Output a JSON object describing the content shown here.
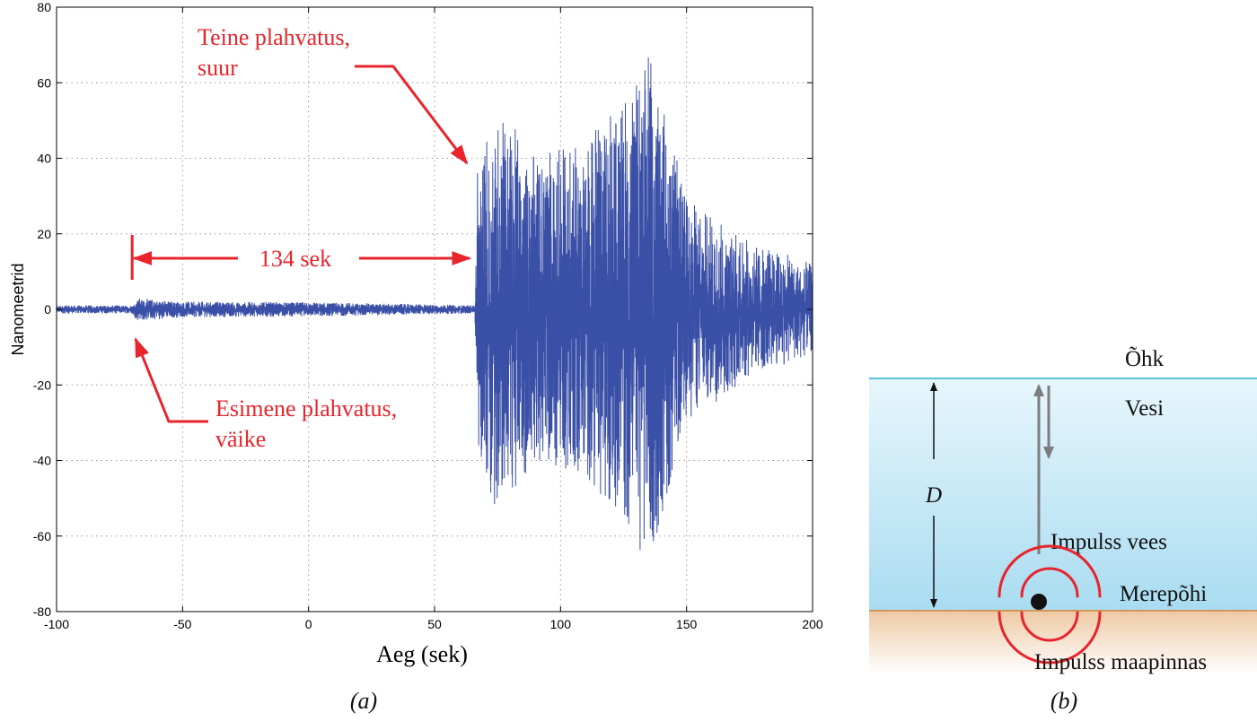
{
  "chart_data": {
    "type": "line",
    "ylabel": "Nanomeetrid",
    "xlabel": "Aeg (sek)",
    "xlim": [
      -100,
      200
    ],
    "ylim": [
      -80,
      80
    ],
    "xticks": [
      -100,
      -50,
      0,
      50,
      100,
      150,
      200
    ],
    "yticks": [
      -80,
      -60,
      -40,
      -20,
      0,
      20,
      40,
      60,
      80
    ],
    "grid": true,
    "series_color": "#3a4fa6",
    "envelope": [
      {
        "x": -100,
        "amp": 1
      },
      {
        "x": -70,
        "amp": 1
      },
      {
        "x": -68,
        "amp": 3
      },
      {
        "x": -50,
        "amp": 2
      },
      {
        "x": 0,
        "amp": 1.8
      },
      {
        "x": 50,
        "amp": 1.2
      },
      {
        "x": 66,
        "amp": 1
      },
      {
        "x": 67,
        "amp": 36
      },
      {
        "x": 75,
        "amp": 55
      },
      {
        "x": 90,
        "amp": 40
      },
      {
        "x": 110,
        "amp": 45
      },
      {
        "x": 125,
        "amp": 55
      },
      {
        "x": 135,
        "amp": 70
      },
      {
        "x": 150,
        "amp": 30
      },
      {
        "x": 175,
        "amp": 18
      },
      {
        "x": 200,
        "amp": 12
      }
    ],
    "annotations": {
      "second_blast": [
        "Teine plahvatus,",
        "suur"
      ],
      "first_blast": [
        "Esimene plahvatus,",
        "väike"
      ],
      "interval": "134 sek",
      "interval_start_x": -70,
      "interval_end_x": 64
    }
  },
  "diagram": {
    "air_label": "Õhk",
    "water_label": "Vesi",
    "depth_label": "D",
    "pulse_water_label": "Impulss vees",
    "seabed_label": "Merepõhi",
    "pulse_ground_label": "Impulss maapinnas",
    "water_color": "#bfe6f5",
    "ground_color": "#f3d2b0",
    "wave_color": "#e8242c"
  },
  "captions": {
    "a": "(a)",
    "b": "(b)"
  }
}
